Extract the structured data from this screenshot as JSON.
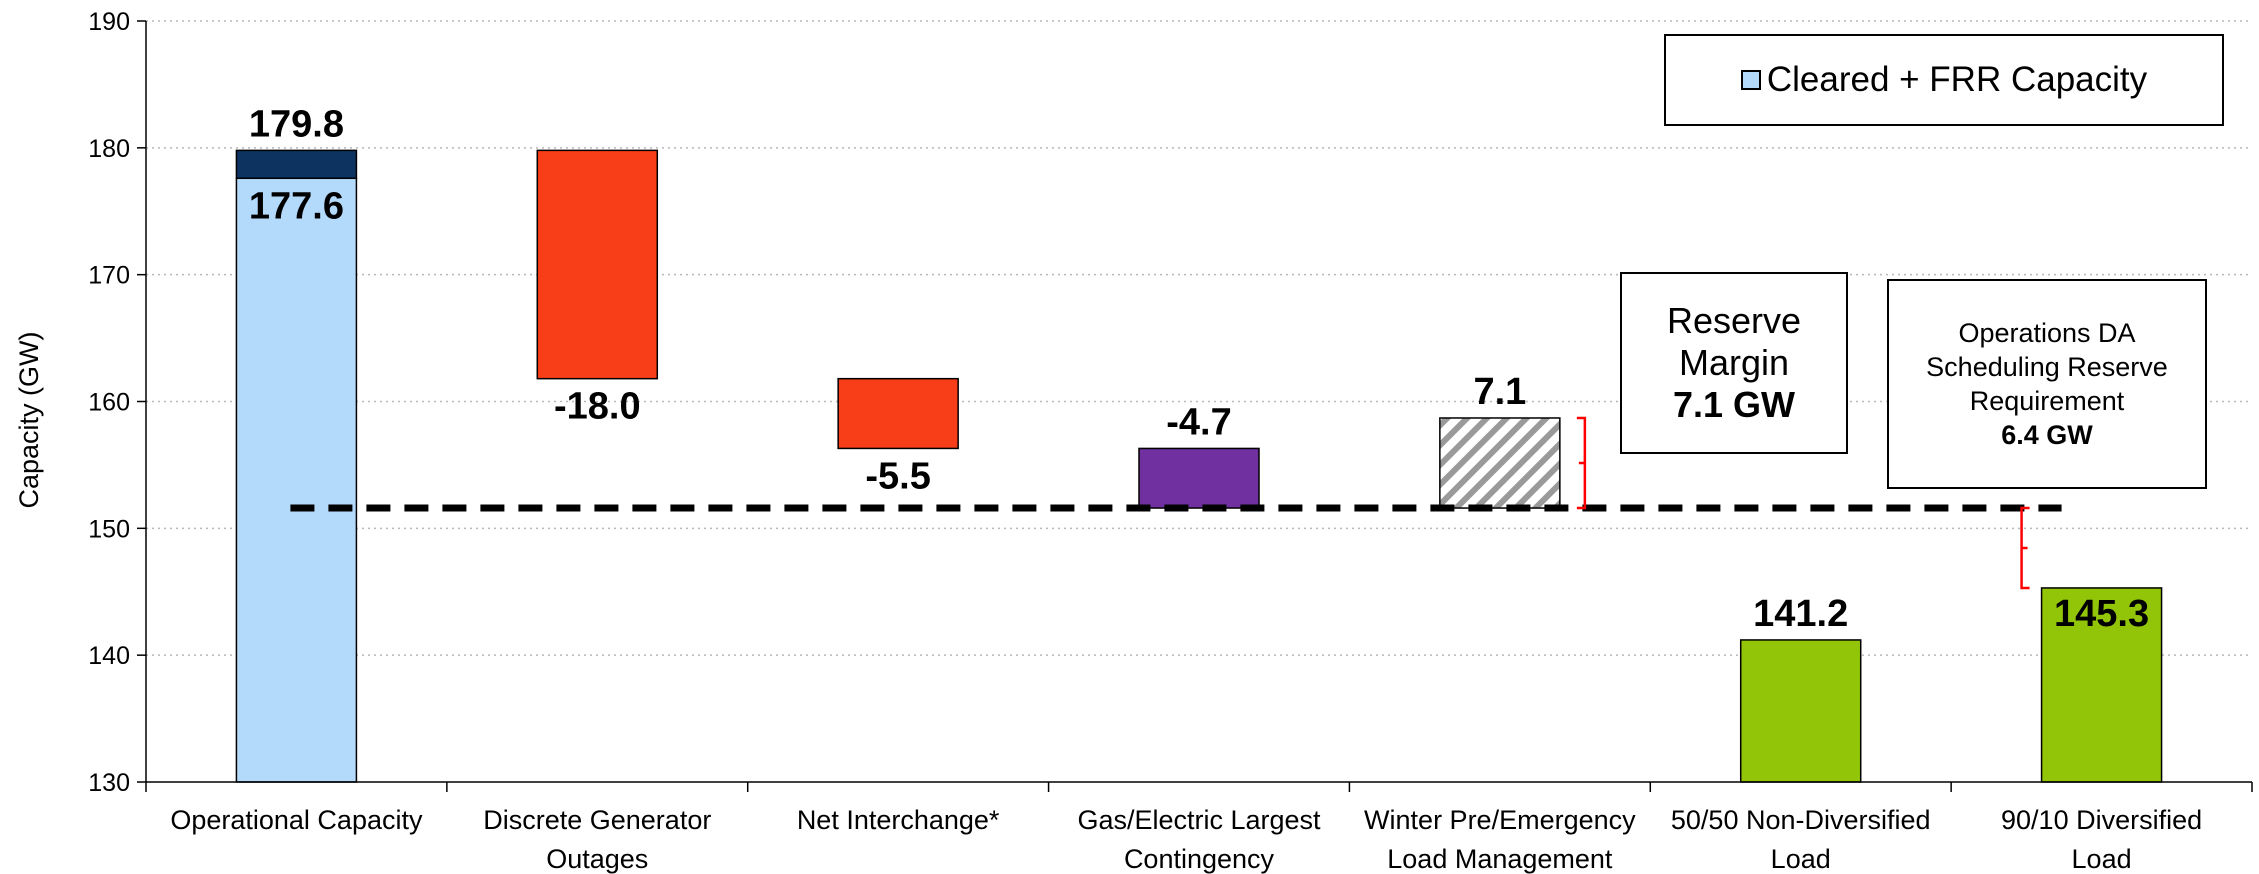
{
  "chart_data": {
    "type": "bar",
    "ylabel": "Capacity (GW)",
    "ylim": [
      130,
      190
    ],
    "yticks": [
      130,
      140,
      150,
      160,
      170,
      180,
      190
    ],
    "grid": true,
    "categories": [
      "Operational Capacity",
      "Discrete Generator Outages",
      "Net Interchange*",
      "Gas/Electric Largest Contingency",
      "Winter Pre/Emergency Load Management",
      "50/50 Non-Diversified Load",
      "90/10 Diversified Load"
    ],
    "category_lines": [
      [
        "Operational Capacity"
      ],
      [
        "Discrete Generator",
        "Outages"
      ],
      [
        "Net Interchange*"
      ],
      [
        "Gas/Electric Largest",
        "Contingency"
      ],
      [
        "Winter Pre/Emergency",
        "Load Management"
      ],
      [
        "50/50 Non-Diversified",
        "Load"
      ],
      [
        "90/10 Diversified",
        "Load"
      ]
    ],
    "bars": [
      {
        "index": 0,
        "bottom": 130,
        "top": 177.6,
        "color": "#b3d9fb",
        "kind": "solid"
      },
      {
        "index": 0,
        "bottom": 177.6,
        "top": 179.8,
        "color": "#0d3461",
        "kind": "solid"
      },
      {
        "index": 1,
        "bottom": 161.8,
        "top": 179.8,
        "color": "#f83d19",
        "kind": "solid"
      },
      {
        "index": 2,
        "bottom": 156.3,
        "top": 161.8,
        "color": "#f83d19",
        "kind": "solid"
      },
      {
        "index": 3,
        "bottom": 151.6,
        "top": 156.3,
        "color": "#7030a0",
        "kind": "solid"
      },
      {
        "index": 4,
        "bottom": 151.6,
        "top": 158.7,
        "color": "#ffffff",
        "kind": "hatched"
      },
      {
        "index": 5,
        "bottom": 130,
        "top": 141.2,
        "color": "#92c508",
        "kind": "solid"
      },
      {
        "index": 6,
        "bottom": 130,
        "top": 145.3,
        "color": "#92c508",
        "kind": "solid"
      }
    ],
    "data_labels": [
      {
        "index": 0,
        "text": "179.8",
        "at": 179.8,
        "pos": "above"
      },
      {
        "index": 0,
        "text": "177.6",
        "at": 177.6,
        "pos": "below"
      },
      {
        "index": 1,
        "text": "-18.0",
        "at": 161.8,
        "pos": "below"
      },
      {
        "index": 2,
        "text": "-5.5",
        "at": 156.3,
        "pos": "below"
      },
      {
        "index": 3,
        "text": "-4.7",
        "at": 156.3,
        "pos": "above"
      },
      {
        "index": 4,
        "text": "7.1",
        "at": 158.7,
        "pos": "above"
      },
      {
        "index": 5,
        "text": "141.2",
        "at": 141.2,
        "pos": "above"
      },
      {
        "index": 6,
        "text": "145.3",
        "at": 145.3,
        "pos": "inside"
      }
    ],
    "reference_line": {
      "value": 151.6,
      "from_index": 0,
      "to_index": 6,
      "style": "dashed",
      "color": "#000000"
    },
    "brackets": [
      {
        "index": 4,
        "from": 151.6,
        "to": 158.7,
        "color": "#ff0000"
      },
      {
        "index": 6,
        "from": 145.3,
        "to": 151.6,
        "color": "#ff0000"
      }
    ],
    "legend": {
      "position": "top-right",
      "entries": [
        {
          "label": "Cleared + FRR Capacity",
          "color": "#b3d9fb"
        }
      ]
    }
  },
  "annotations": {
    "reserve_margin": {
      "line1": "Reserve",
      "line2": "Margin",
      "value": "7.1 GW"
    },
    "ops_da": {
      "line1": "Operations DA",
      "line2": "Scheduling Reserve",
      "line3": "Requirement",
      "value": "6.4 GW"
    }
  }
}
